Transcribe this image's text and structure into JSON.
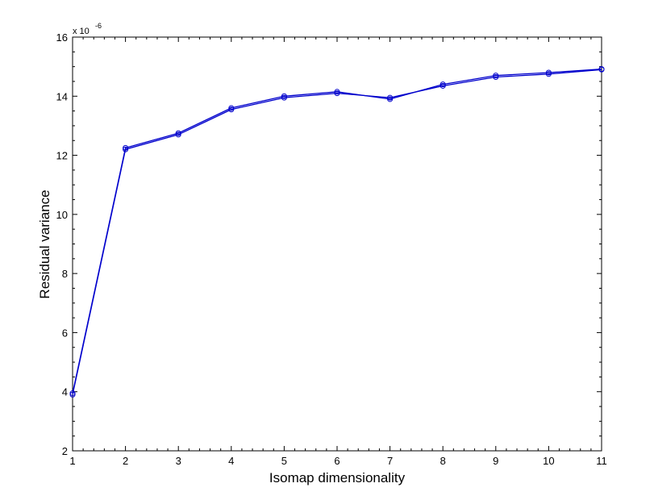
{
  "chart_data": {
    "type": "line",
    "title": "",
    "xlabel": "Isomap dimensionality",
    "ylabel": "Residual variance",
    "y_multiplier_label": "x 10",
    "y_multiplier_exponent": "-6",
    "xlim": [
      1,
      11
    ],
    "ylim": [
      2,
      16
    ],
    "xticks": [
      1,
      2,
      3,
      4,
      5,
      6,
      7,
      8,
      9,
      10,
      11
    ],
    "yticks": [
      2,
      4,
      6,
      8,
      10,
      12,
      14,
      16
    ],
    "grid": false,
    "marker": "circle",
    "series": [
      {
        "color": "#0000cc",
        "x": [
          1,
          2,
          3,
          4,
          5,
          6,
          7,
          8,
          9,
          10,
          11
        ],
        "values": [
          3.9,
          12.2,
          12.7,
          13.55,
          13.95,
          14.1,
          13.95,
          14.35,
          14.65,
          14.75,
          14.9
        ]
      },
      {
        "color": "#0000cc",
        "x": [
          1,
          2,
          3,
          4,
          5,
          6,
          7,
          8,
          9,
          10,
          11
        ],
        "values": [
          3.95,
          12.25,
          12.75,
          13.6,
          14.0,
          14.15,
          13.9,
          14.4,
          14.7,
          14.8,
          14.92
        ]
      }
    ]
  }
}
